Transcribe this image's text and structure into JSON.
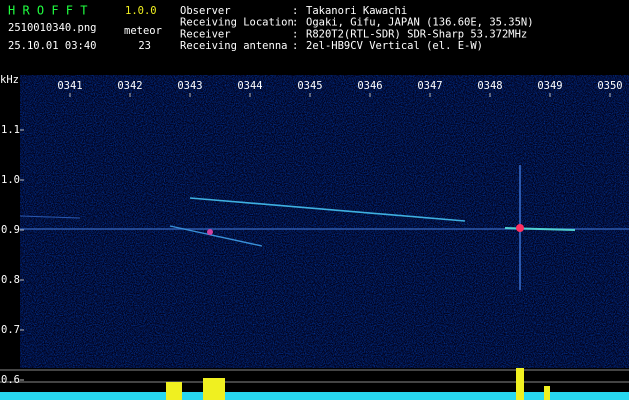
{
  "chart_data": {
    "type": "spectrogram",
    "app_name": "H R O F F T",
    "version": "1.0.0",
    "file_name": "2510010340.png",
    "timestamp": "25.10.01 03:40",
    "count_label": "meteor",
    "count": 23,
    "info": [
      {
        "label": "Observer",
        "value": "Takanori Kawachi"
      },
      {
        "label": "Receiving Location",
        "value": "Ogaki, Gifu, JAPAN (136.60E, 35.35N)"
      },
      {
        "label": "Receiver",
        "value": "R820T2(RTL-SDR) SDR-Sharp 53.372MHz"
      },
      {
        "label": "Receiving antenna",
        "value": "2el-HB9CV Vertical (el. E-W)"
      }
    ],
    "separator": ":",
    "y_label": "kHz",
    "categories": [
      "0341",
      "0342",
      "0343",
      "0344",
      "0345",
      "0346",
      "0347",
      "0348",
      "0349",
      "0350"
    ],
    "ylim": [
      0.56,
      1.21
    ],
    "yticks": [
      {
        "value": 1.1,
        "label": "1.1"
      },
      {
        "value": 1.0,
        "label": "1.0"
      },
      {
        "value": 0.9,
        "label": "0.9"
      },
      {
        "value": 0.8,
        "label": "0.8"
      },
      {
        "value": 0.7,
        "label": "0.7"
      },
      {
        "value": 0.6,
        "label": "0.6"
      }
    ]
  }
}
